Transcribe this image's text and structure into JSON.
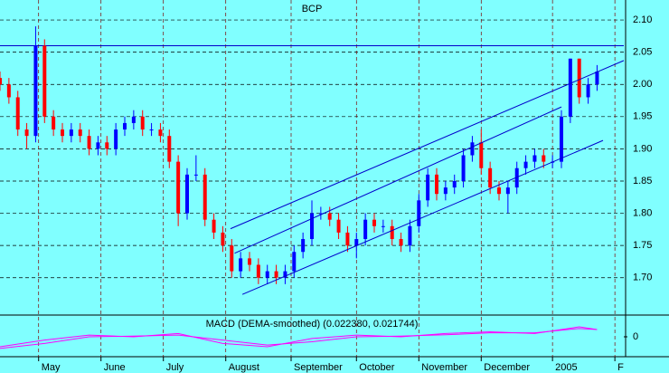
{
  "chart_data": {
    "type": "candlestick",
    "title": "BCP",
    "x": [
      0,
      3,
      6,
      9,
      12,
      15,
      18,
      21,
      24,
      27,
      30,
      33,
      36,
      39,
      42,
      45,
      48,
      51,
      54,
      57,
      60,
      63,
      66,
      69,
      72,
      75,
      78,
      81,
      84,
      87,
      90,
      93,
      96,
      99,
      102,
      105,
      108,
      111,
      114,
      117,
      120,
      123,
      126,
      129,
      132,
      135,
      138,
      141,
      144,
      147,
      150,
      153,
      156,
      159,
      162,
      165,
      168,
      171,
      174,
      177,
      180,
      183,
      186,
      189,
      192,
      195,
      198,
      201
    ],
    "open": [
      2.01,
      2.0,
      1.98,
      1.93,
      1.92,
      2.06,
      1.95,
      1.93,
      1.92,
      1.93,
      1.92,
      1.9,
      1.91,
      1.9,
      1.93,
      1.94,
      1.95,
      1.93,
      1.93,
      1.92,
      1.88,
      1.8,
      1.86,
      1.86,
      1.79,
      1.77,
      1.75,
      1.71,
      1.73,
      1.72,
      1.7,
      1.71,
      1.7,
      1.71,
      1.74,
      1.76,
      1.8,
      1.8,
      1.79,
      1.77,
      1.75,
      1.76,
      1.79,
      1.78,
      1.78,
      1.76,
      1.75,
      1.78,
      1.82,
      1.86,
      1.83,
      1.84,
      1.85,
      1.89,
      1.91,
      1.87,
      1.84,
      1.83,
      1.84,
      1.87,
      1.88,
      1.89,
      1.88,
      1.88,
      1.95,
      2.04,
      1.98,
      2.0
    ],
    "high": [
      2.02,
      2.01,
      1.99,
      1.94,
      2.09,
      2.07,
      1.96,
      1.94,
      1.94,
      1.94,
      1.93,
      1.92,
      1.92,
      1.94,
      1.95,
      1.96,
      1.96,
      1.94,
      1.94,
      1.93,
      1.89,
      1.87,
      1.89,
      1.87,
      1.8,
      1.78,
      1.76,
      1.74,
      1.74,
      1.73,
      1.72,
      1.72,
      1.72,
      1.75,
      1.77,
      1.82,
      1.81,
      1.81,
      1.8,
      1.78,
      1.77,
      1.8,
      1.8,
      1.79,
      1.79,
      1.77,
      1.79,
      1.83,
      1.87,
      1.87,
      1.85,
      1.86,
      1.9,
      1.92,
      1.93,
      1.88,
      1.85,
      1.85,
      1.88,
      1.89,
      1.9,
      1.9,
      1.89,
      1.96,
      2.04,
      2.04,
      2.01,
      2.03
    ],
    "low": [
      1.99,
      1.97,
      1.92,
      1.9,
      1.91,
      1.94,
      1.92,
      1.91,
      1.91,
      1.91,
      1.89,
      1.89,
      1.89,
      1.89,
      1.92,
      1.93,
      1.92,
      1.92,
      1.91,
      1.87,
      1.78,
      1.79,
      1.85,
      1.78,
      1.76,
      1.74,
      1.7,
      1.7,
      1.71,
      1.69,
      1.69,
      1.69,
      1.69,
      1.7,
      1.73,
      1.75,
      1.79,
      1.78,
      1.76,
      1.74,
      1.73,
      1.75,
      1.77,
      1.77,
      1.75,
      1.74,
      1.74,
      1.77,
      1.81,
      1.82,
      1.82,
      1.83,
      1.84,
      1.88,
      1.86,
      1.83,
      1.82,
      1.8,
      1.83,
      1.86,
      1.87,
      1.87,
      1.87,
      1.87,
      1.94,
      1.97,
      1.97,
      1.99
    ],
    "close": [
      2.0,
      1.98,
      1.93,
      1.92,
      2.06,
      1.95,
      1.93,
      1.92,
      1.93,
      1.92,
      1.9,
      1.91,
      1.9,
      1.93,
      1.94,
      1.95,
      1.93,
      1.93,
      1.92,
      1.88,
      1.8,
      1.86,
      1.86,
      1.79,
      1.77,
      1.75,
      1.71,
      1.73,
      1.72,
      1.7,
      1.71,
      1.7,
      1.71,
      1.74,
      1.76,
      1.8,
      1.8,
      1.79,
      1.77,
      1.75,
      1.76,
      1.79,
      1.78,
      1.78,
      1.76,
      1.75,
      1.78,
      1.82,
      1.86,
      1.83,
      1.84,
      1.85,
      1.89,
      1.91,
      1.87,
      1.84,
      1.83,
      1.84,
      1.87,
      1.88,
      1.89,
      1.88,
      1.88,
      1.95,
      2.04,
      1.98,
      2.0,
      2.02
    ],
    "up_color": "#0000ff",
    "down_color": "#ff0000",
    "xlim": [
      0,
      210
    ],
    "xticks": [
      {
        "value": 13,
        "label": "May"
      },
      {
        "value": 34,
        "label": "June"
      },
      {
        "value": 55,
        "label": "July"
      },
      {
        "value": 76,
        "label": "August"
      },
      {
        "value": 98,
        "label": "September"
      },
      {
        "value": 120,
        "label": "October"
      },
      {
        "value": 141,
        "label": "November"
      },
      {
        "value": 162,
        "label": "December"
      },
      {
        "value": 186,
        "label": "2005"
      },
      {
        "value": 207,
        "label": "F"
      }
    ],
    "ylim": [
      1.642,
      2.131
    ],
    "yticks": [
      {
        "value": 2.1,
        "label": "2.10"
      },
      2.05,
      {
        "value": 2.0,
        "label": "2.00"
      },
      1.95,
      {
        "value": 1.9,
        "label": "1.90"
      },
      1.85,
      {
        "value": 1.8,
        "label": "1.80"
      },
      1.75,
      {
        "value": 1.7,
        "label": "1.70"
      }
    ],
    "grid": true,
    "hline": 2.06,
    "trendlines": [
      {
        "x": [
          77.6,
          210
        ],
        "values": [
          1.776,
          2.037
        ]
      },
      {
        "x": [
          79,
          189
        ],
        "values": [
          1.738,
          1.965
        ]
      },
      {
        "x": [
          81.6,
          203
        ],
        "values": [
          1.674,
          1.913
        ]
      }
    ],
    "line_color": "#0000cc",
    "macd": {
      "label": "MACD (DEMA-smoothed) (0.022380, 0.021744)",
      "x": [
        0,
        15,
        30,
        45,
        60,
        75,
        90,
        105,
        120,
        135,
        150,
        165,
        180,
        195,
        201
      ],
      "series": [
        {
          "values": [
            -0.03,
            -0.01,
            0.005,
            0.0,
            0.01,
            -0.02,
            -0.03,
            -0.005,
            0.005,
            0.0,
            0.01,
            0.015,
            0.01,
            0.03,
            0.022
          ]
        },
        {
          "values": [
            -0.035,
            -0.02,
            0.0,
            0.002,
            0.005,
            -0.01,
            -0.025,
            -0.015,
            0.0,
            0.002,
            0.006,
            0.012,
            0.012,
            0.025,
            0.0217
          ]
        }
      ],
      "color": "#ff00ff",
      "ylim": [
        -0.06,
        0.06
      ],
      "yticks": [
        0
      ]
    }
  }
}
